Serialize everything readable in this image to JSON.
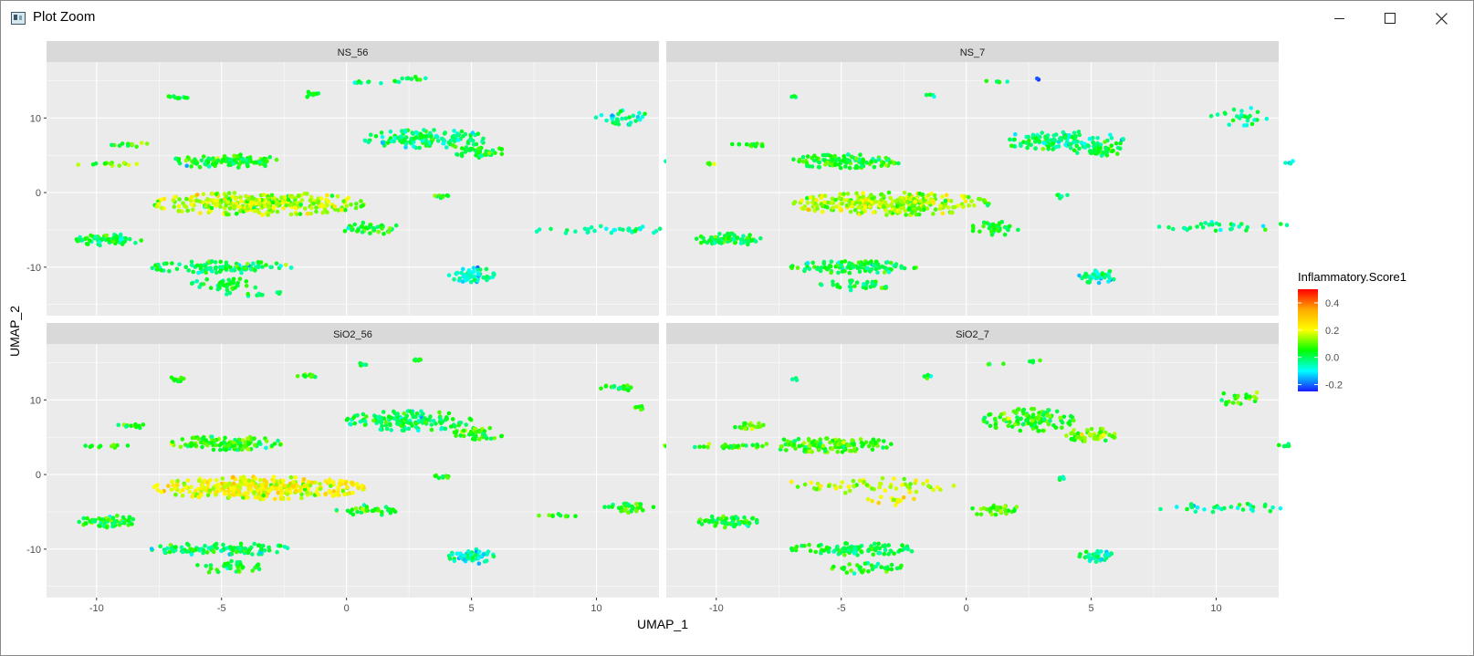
{
  "window": {
    "title": "Plot Zoom",
    "controls": {
      "minimize": "minimize",
      "maximize": "maximize",
      "close": "close"
    }
  },
  "colors": {
    "panel_bg": "#EBEBEB",
    "strip_bg": "#D9D9D9",
    "grid": "#FFFFFF",
    "axis_text": "#4D4D4D",
    "scale_low": "#1A1AFF",
    "scale_mid": "#00FF00",
    "scale_high": "#FF0000"
  },
  "chart_data": {
    "type": "scatter",
    "title": "",
    "xlabel": "UMAP_1",
    "ylabel": "UMAP_2",
    "xlim": [
      -12,
      12.5
    ],
    "ylim": [
      -16.5,
      17.5
    ],
    "xticks": [
      -10,
      -5,
      0,
      5,
      10
    ],
    "xtick_labels": [
      "-10",
      "-5",
      "0",
      "5",
      "10"
    ],
    "yticks": [
      -10,
      0,
      10
    ],
    "ytick_labels": [
      "-10",
      "0",
      "10"
    ],
    "grid": true,
    "legend": {
      "title": "Inflammatory.Score1",
      "position": "right",
      "range": [
        -0.25,
        0.5
      ],
      "breaks": [
        0.4,
        0.2,
        0.0,
        -0.2
      ],
      "break_labels": [
        "0.4",
        "0.2",
        "0.0",
        "-0.2"
      ],
      "colors": [
        "#1A1AFF",
        "#00FFFF",
        "#00FF00",
        "#FFFF00",
        "#FFAA00",
        "#FF0000"
      ]
    },
    "panels": [
      {
        "name": "NS_56",
        "clusters": [
          {
            "cx": -6.8,
            "cy": 12.8,
            "rx": 0.45,
            "ry": 0.4,
            "n": 10,
            "score": 0.0
          },
          {
            "cx": -1.4,
            "cy": 13.2,
            "rx": 0.45,
            "ry": 0.4,
            "n": 10,
            "score": 0.02
          },
          {
            "cx": 1.3,
            "cy": 14.8,
            "rx": 1.2,
            "ry": 0.2,
            "n": 10,
            "score": -0.02
          },
          {
            "cx": 2.8,
            "cy": 15.3,
            "rx": 0.6,
            "ry": 0.25,
            "n": 8,
            "score": 0.02
          },
          {
            "cx": -4.8,
            "cy": 4.2,
            "rx": 2.2,
            "ry": 0.9,
            "n": 120,
            "score": 0.05
          },
          {
            "cx": -9.5,
            "cy": 3.8,
            "rx": 1.3,
            "ry": 0.2,
            "n": 14,
            "score": 0.1
          },
          {
            "cx": -8.6,
            "cy": 6.4,
            "rx": 0.8,
            "ry": 0.3,
            "n": 16,
            "score": 0.08
          },
          {
            "cx": 3.2,
            "cy": 7.2,
            "rx": 2.5,
            "ry": 1.2,
            "n": 140,
            "score": -0.02
          },
          {
            "cx": 5.3,
            "cy": 5.5,
            "rx": 1.0,
            "ry": 0.8,
            "n": 40,
            "score": 0.03
          },
          {
            "cx": -3.5,
            "cy": -1.5,
            "rx": 4.2,
            "ry": 1.5,
            "n": 330,
            "score": 0.15
          },
          {
            "cx": 1.0,
            "cy": -4.8,
            "rx": 1.2,
            "ry": 0.8,
            "n": 40,
            "score": 0.05
          },
          {
            "cx": -9.5,
            "cy": -6.3,
            "rx": 1.3,
            "ry": 0.8,
            "n": 70,
            "score": 0.02
          },
          {
            "cx": -5.0,
            "cy": -10.0,
            "rx": 2.8,
            "ry": 0.8,
            "n": 110,
            "score": 0.0
          },
          {
            "cx": -4.8,
            "cy": -12.3,
            "rx": 1.4,
            "ry": 0.8,
            "n": 40,
            "score": 0.01
          },
          {
            "cx": -3.6,
            "cy": -13.6,
            "rx": 1.2,
            "ry": 0.4,
            "n": 12,
            "score": 0.03
          },
          {
            "cx": 5.0,
            "cy": -11.0,
            "rx": 0.9,
            "ry": 1.0,
            "n": 55,
            "score": -0.06
          },
          {
            "cx": 3.8,
            "cy": -0.5,
            "rx": 0.4,
            "ry": 0.3,
            "n": 8,
            "score": 0.02
          },
          {
            "cx": 10.3,
            "cy": -5.0,
            "rx": 3.0,
            "ry": 0.5,
            "n": 35,
            "score": -0.04
          },
          {
            "cx": 11.0,
            "cy": 10.0,
            "rx": 1.1,
            "ry": 1.1,
            "n": 30,
            "score": -0.04
          },
          {
            "cx": 13.0,
            "cy": 4.0,
            "rx": 0.3,
            "ry": 0.3,
            "n": 5,
            "score": -0.1
          }
        ]
      },
      {
        "name": "NS_7",
        "clusters": [
          {
            "cx": -6.8,
            "cy": 12.8,
            "rx": 0.2,
            "ry": 0.2,
            "n": 3,
            "score": -0.04
          },
          {
            "cx": -1.4,
            "cy": 13.2,
            "rx": 0.2,
            "ry": 0.4,
            "n": 4,
            "score": -0.02
          },
          {
            "cx": 1.2,
            "cy": 14.8,
            "rx": 0.8,
            "ry": 0.2,
            "n": 6,
            "score": 0.0
          },
          {
            "cx": 3.0,
            "cy": 15.3,
            "rx": 0.2,
            "ry": 0.2,
            "n": 2,
            "score": -0.18
          },
          {
            "cx": -4.8,
            "cy": 4.2,
            "rx": 2.2,
            "ry": 0.9,
            "n": 110,
            "score": 0.04
          },
          {
            "cx": -8.6,
            "cy": 6.4,
            "rx": 0.8,
            "ry": 0.3,
            "n": 14,
            "score": 0.06
          },
          {
            "cx": -10.5,
            "cy": 3.8,
            "rx": 0.5,
            "ry": 0.2,
            "n": 5,
            "score": 0.1
          },
          {
            "cx": 3.8,
            "cy": 7.0,
            "rx": 2.5,
            "ry": 1.2,
            "n": 130,
            "score": -0.02
          },
          {
            "cx": 5.3,
            "cy": 5.5,
            "rx": 1.0,
            "ry": 0.8,
            "n": 40,
            "score": 0.02
          },
          {
            "cx": -3.0,
            "cy": -1.5,
            "rx": 3.9,
            "ry": 1.5,
            "n": 320,
            "score": 0.14
          },
          {
            "cx": 1.2,
            "cy": -4.8,
            "rx": 1.0,
            "ry": 0.9,
            "n": 40,
            "score": 0.04
          },
          {
            "cx": -9.5,
            "cy": -6.3,
            "rx": 1.3,
            "ry": 0.8,
            "n": 70,
            "score": 0.02
          },
          {
            "cx": -4.5,
            "cy": -10.0,
            "rx": 2.5,
            "ry": 0.8,
            "n": 110,
            "score": 0.01
          },
          {
            "cx": -4.5,
            "cy": -12.5,
            "rx": 1.4,
            "ry": 0.7,
            "n": 30,
            "score": 0.02
          },
          {
            "cx": 5.2,
            "cy": -11.2,
            "rx": 0.8,
            "ry": 0.9,
            "n": 45,
            "score": -0.06
          },
          {
            "cx": 3.8,
            "cy": -0.5,
            "rx": 0.3,
            "ry": 0.3,
            "n": 6,
            "score": 0.0
          },
          {
            "cx": 10.3,
            "cy": -4.5,
            "rx": 2.6,
            "ry": 0.6,
            "n": 30,
            "score": -0.03
          },
          {
            "cx": 11.0,
            "cy": 10.2,
            "rx": 1.2,
            "ry": 1.2,
            "n": 25,
            "score": -0.04
          },
          {
            "cx": 13.0,
            "cy": 4.0,
            "rx": 0.3,
            "ry": 0.3,
            "n": 4,
            "score": -0.06
          }
        ]
      },
      {
        "name": "SiO2_56",
        "clusters": [
          {
            "cx": -6.8,
            "cy": 12.8,
            "rx": 0.4,
            "ry": 0.3,
            "n": 10,
            "score": 0.06
          },
          {
            "cx": -1.6,
            "cy": 13.2,
            "rx": 0.5,
            "ry": 0.3,
            "n": 12,
            "score": 0.06
          },
          {
            "cx": 0.7,
            "cy": 14.8,
            "rx": 0.3,
            "ry": 0.2,
            "n": 5,
            "score": 0.03
          },
          {
            "cx": 2.8,
            "cy": 15.3,
            "rx": 0.3,
            "ry": 0.2,
            "n": 6,
            "score": 0.06
          },
          {
            "cx": -4.8,
            "cy": 4.2,
            "rx": 2.2,
            "ry": 0.9,
            "n": 120,
            "score": 0.06
          },
          {
            "cx": -9.5,
            "cy": 3.8,
            "rx": 1.0,
            "ry": 0.2,
            "n": 10,
            "score": 0.06
          },
          {
            "cx": -8.6,
            "cy": 6.5,
            "rx": 0.6,
            "ry": 0.3,
            "n": 12,
            "score": 0.06
          },
          {
            "cx": 2.5,
            "cy": 7.2,
            "rx": 2.5,
            "ry": 1.3,
            "n": 150,
            "score": 0.0
          },
          {
            "cx": 5.3,
            "cy": 5.5,
            "rx": 1.0,
            "ry": 0.8,
            "n": 45,
            "score": 0.06
          },
          {
            "cx": -3.5,
            "cy": -1.8,
            "rx": 4.2,
            "ry": 1.5,
            "n": 340,
            "score": 0.2
          },
          {
            "cx": 0.8,
            "cy": -4.8,
            "rx": 1.2,
            "ry": 0.7,
            "n": 35,
            "score": 0.07
          },
          {
            "cx": -9.5,
            "cy": -6.3,
            "rx": 1.2,
            "ry": 0.8,
            "n": 65,
            "score": 0.04
          },
          {
            "cx": -5.0,
            "cy": -10.0,
            "rx": 2.8,
            "ry": 0.8,
            "n": 110,
            "score": 0.0
          },
          {
            "cx": -4.8,
            "cy": -12.4,
            "rx": 1.4,
            "ry": 0.8,
            "n": 35,
            "score": 0.04
          },
          {
            "cx": 5.0,
            "cy": -11.0,
            "rx": 0.9,
            "ry": 1.0,
            "n": 55,
            "score": -0.06
          },
          {
            "cx": 3.8,
            "cy": -0.3,
            "rx": 0.4,
            "ry": 0.3,
            "n": 8,
            "score": 0.06
          },
          {
            "cx": 8.5,
            "cy": -5.5,
            "rx": 0.8,
            "ry": 0.2,
            "n": 10,
            "score": 0.06
          },
          {
            "cx": 11.3,
            "cy": -4.5,
            "rx": 1.0,
            "ry": 0.6,
            "n": 35,
            "score": 0.05
          },
          {
            "cx": 10.8,
            "cy": 11.5,
            "rx": 0.8,
            "ry": 0.5,
            "n": 20,
            "score": 0.05
          },
          {
            "cx": 11.7,
            "cy": 9.0,
            "rx": 0.3,
            "ry": 0.4,
            "n": 6,
            "score": 0.06
          },
          {
            "cx": 13.0,
            "cy": 3.8,
            "rx": 0.3,
            "ry": 0.2,
            "n": 4,
            "score": 0.06
          }
        ]
      },
      {
        "name": "SiO2_7",
        "clusters": [
          {
            "cx": -6.8,
            "cy": 12.8,
            "rx": 0.2,
            "ry": 0.2,
            "n": 3,
            "score": -0.03
          },
          {
            "cx": -1.6,
            "cy": 13.2,
            "rx": 0.2,
            "ry": 0.3,
            "n": 5,
            "score": 0.0
          },
          {
            "cx": 1.2,
            "cy": 14.8,
            "rx": 0.5,
            "ry": 0.2,
            "n": 4,
            "score": 0.04
          },
          {
            "cx": 2.8,
            "cy": 15.2,
            "rx": 0.5,
            "ry": 0.2,
            "n": 5,
            "score": 0.0
          },
          {
            "cx": -5.5,
            "cy": 4.0,
            "rx": 2.5,
            "ry": 1.0,
            "n": 130,
            "score": 0.08
          },
          {
            "cx": -9.5,
            "cy": 3.8,
            "rx": 1.8,
            "ry": 0.3,
            "n": 30,
            "score": 0.06
          },
          {
            "cx": -8.6,
            "cy": 6.5,
            "rx": 0.7,
            "ry": 0.4,
            "n": 20,
            "score": 0.1
          },
          {
            "cx": 2.5,
            "cy": 7.3,
            "rx": 1.8,
            "ry": 1.5,
            "n": 110,
            "score": 0.06
          },
          {
            "cx": 5.0,
            "cy": 5.3,
            "rx": 1.0,
            "ry": 0.9,
            "n": 55,
            "score": 0.12
          },
          {
            "cx": -4.0,
            "cy": -1.5,
            "rx": 3.5,
            "ry": 1.0,
            "n": 60,
            "score": 0.16
          },
          {
            "cx": -2.5,
            "cy": -3.5,
            "rx": 1.5,
            "ry": 0.6,
            "n": 15,
            "score": 0.2
          },
          {
            "cx": 1.2,
            "cy": -4.8,
            "rx": 1.0,
            "ry": 0.8,
            "n": 35,
            "score": 0.08
          },
          {
            "cx": -9.5,
            "cy": -6.3,
            "rx": 1.2,
            "ry": 0.8,
            "n": 60,
            "score": 0.04
          },
          {
            "cx": -4.5,
            "cy": -10.0,
            "rx": 2.5,
            "ry": 0.8,
            "n": 100,
            "score": 0.01
          },
          {
            "cx": -4.0,
            "cy": -12.5,
            "rx": 1.5,
            "ry": 0.8,
            "n": 35,
            "score": 0.04
          },
          {
            "cx": 5.2,
            "cy": -11.0,
            "rx": 0.7,
            "ry": 0.8,
            "n": 35,
            "score": -0.04
          },
          {
            "cx": 3.8,
            "cy": -0.5,
            "rx": 0.3,
            "ry": 0.3,
            "n": 5,
            "score": -0.03
          },
          {
            "cx": 10.3,
            "cy": -4.5,
            "rx": 2.6,
            "ry": 0.6,
            "n": 30,
            "score": -0.04
          },
          {
            "cx": 11.0,
            "cy": 10.2,
            "rx": 1.0,
            "ry": 1.0,
            "n": 20,
            "score": 0.08
          },
          {
            "cx": 12.8,
            "cy": 4.0,
            "rx": 0.3,
            "ry": 0.3,
            "n": 5,
            "score": 0.0
          }
        ]
      }
    ]
  }
}
